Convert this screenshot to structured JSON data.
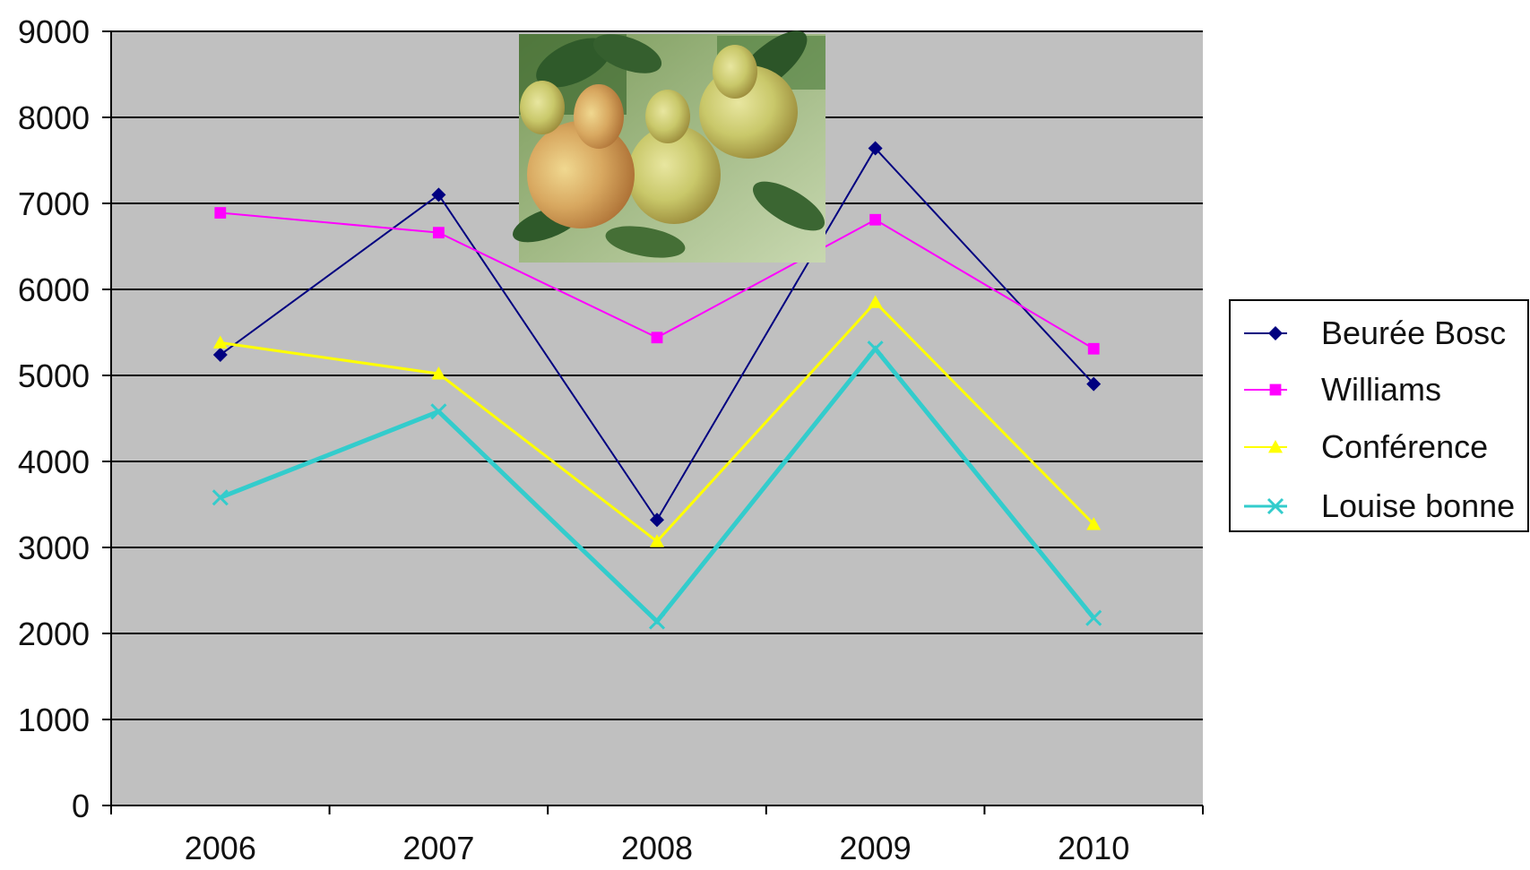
{
  "chart_data": {
    "type": "line",
    "categories": [
      "2006",
      "2007",
      "2008",
      "2009",
      "2010"
    ],
    "ylim": [
      0,
      9000
    ],
    "yticks": [
      "0",
      "1000",
      "2000",
      "3000",
      "4000",
      "5000",
      "6000",
      "7000",
      "8000",
      "9000"
    ],
    "grid": true,
    "legend_position": "right",
    "plot_background": "#c0c0c0",
    "series": [
      {
        "name": "Beurée Bosc",
        "color": "#000080",
        "marker": "diamond",
        "values": [
          5240,
          7100,
          3320,
          7640,
          4900
        ]
      },
      {
        "name": "Williams",
        "color": "#ff00ff",
        "marker": "square",
        "values": [
          6890,
          6660,
          5440,
          6810,
          5310
        ]
      },
      {
        "name": "Conférence",
        "color": "#ffff00",
        "marker": "triangle",
        "values": [
          5380,
          5020,
          3070,
          5850,
          3270
        ]
      },
      {
        "name": "Louise bonne",
        "color": "#33cccc",
        "marker": "x",
        "values": [
          3580,
          4580,
          2140,
          5310,
          2180
        ]
      }
    ],
    "inset_image": "photo-of-pears-on-branch"
  }
}
